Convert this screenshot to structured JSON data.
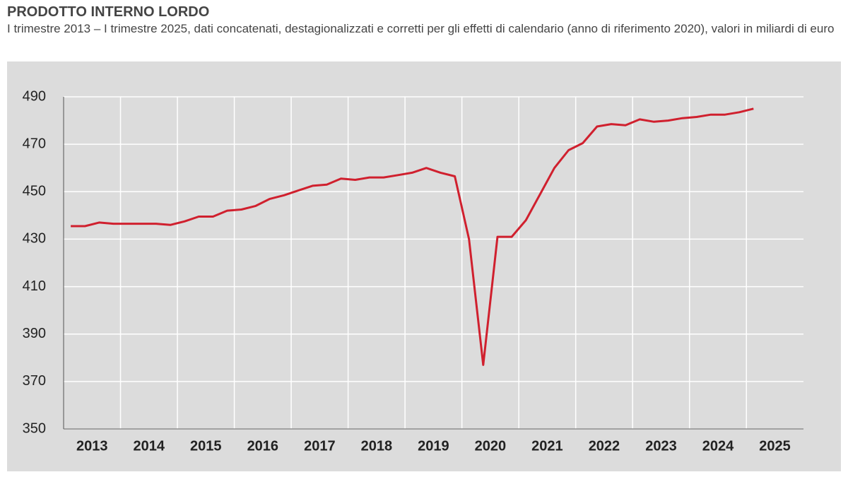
{
  "chart_data": {
    "type": "line",
    "title": "PRODOTTO INTERNO LORDO",
    "subtitle": "I trimestre 2013 – I trimestre 2025, dati concatenati, destagionalizzati e corretti per gli effetti di calendario (anno di riferimento 2020), valori in miliardi di euro",
    "categories": [
      "2013",
      null,
      null,
      null,
      "2014",
      null,
      null,
      null,
      "2015",
      null,
      null,
      null,
      "2016",
      null,
      null,
      null,
      "2017",
      null,
      null,
      null,
      "2018",
      null,
      null,
      null,
      "2019",
      null,
      null,
      null,
      "2020",
      null,
      null,
      null,
      "2021",
      null,
      null,
      null,
      "2022",
      null,
      null,
      null,
      "2023",
      null,
      null,
      null,
      "2024",
      null,
      null,
      null,
      "2025"
    ],
    "series": [
      {
        "name": null,
        "color": "#d0202e",
        "values": [
          435.5,
          435.5,
          437,
          436.5,
          436.5,
          436.5,
          436.5,
          436,
          437.5,
          439.5,
          439.5,
          442,
          442.5,
          444,
          447,
          448.5,
          450.5,
          452.5,
          453,
          455.5,
          455,
          456,
          456,
          457,
          458,
          460,
          458,
          456.5,
          430,
          377,
          431,
          431,
          438,
          449,
          460,
          467.5,
          470.5,
          477.5,
          478.5,
          478,
          480.5,
          479.5,
          480,
          481,
          481.5,
          482.5,
          482.5,
          483.5,
          485
        ]
      }
    ],
    "ylim": [
      350,
      490
    ],
    "yticks": [
      350,
      370,
      390,
      410,
      430,
      450,
      470,
      490
    ],
    "grid": true
  }
}
